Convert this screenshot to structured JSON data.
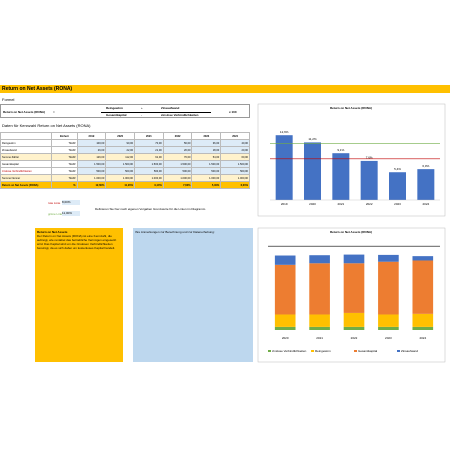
{
  "title": "Return on Net Assets (RONA)",
  "formula": {
    "heading": "Formel",
    "lhs": "Return on Net Assets (RONA)",
    "eq": "=",
    "num1": "Reingewinn",
    "plus": "+",
    "num2": "Zinsaufwand",
    "den1": "Gesamtkapital",
    "minus": "-",
    "den2": "zinslose Verbindlichkeiten",
    "factor": "x 100"
  },
  "table": {
    "heading": "Daten für Kennzahl Return on Net Assets (RONA)",
    "header": [
      "",
      "Einheit",
      "2019",
      "2020",
      "2021",
      "2022",
      "2023",
      "2024"
    ],
    "rows": [
      [
        "Reingewinn",
        "TEUR",
        "100,00",
        "90,00",
        "70,00",
        "56,00",
        "36,00",
        "40,00"
      ],
      [
        "Zinsaufwand",
        "TEUR",
        "26,00",
        "22,00",
        "21,00",
        "20,00",
        "18,00",
        "20,00"
      ],
      [
        "Summe Zähler",
        "TEUR",
        "126,00",
        "112,00",
        "91,00",
        "76,00",
        "54,00",
        "60,00"
      ],
      [
        "Gesamtkapital",
        "TEUR",
        "1.500,00",
        "1.500,00",
        "1.500,00",
        "1.500,00",
        "1.500,00",
        "1.500,00"
      ],
      [
        "zinslose Verbindlichkeiten",
        "TEUR",
        "500,00",
        "500,00",
        "500,00",
        "500,00",
        "500,00",
        "500,00"
      ],
      [
        "Summe Nenner",
        "TEUR",
        "1.000,00",
        "1.000,00",
        "1.000,00",
        "1.000,00",
        "1.000,00",
        "1.000,00"
      ],
      [
        "Return on Net Assets (RONA)",
        "%",
        "12,60%",
        "11,20%",
        "9,10%",
        "7,60%",
        "5,40%",
        "6,00%"
      ]
    ]
  },
  "limits": [
    {
      "label": "rote Linie",
      "value": "8,00%"
    },
    {
      "label": "grüne Linie",
      "value": "11,00%"
    }
  ],
  "limits_note": "Definieren Sie hier nach eigenen Vorgaben Grenzwerte für die Linien im Diagramm.",
  "info_box": {
    "heading": "Return on Net Assets",
    "text": "Der Return on Net Assets (RONA) ist eine Kennzahl, die aufzeigt, wie rentabel das betriebliche Vermögen eingesetzt wird. Das Kapital wird um die zinslosen Verbindlichkeiten bereinigt, da es sich dabei um kostenloses Kapital handelt."
  },
  "notes_box": {
    "text": "Ihre Anmerkungen zur Berechnung und zur Datenerhebung:"
  },
  "chart_data": [
    {
      "type": "bar",
      "title": "Return on Net Assets (RONA)",
      "categories": [
        "2019",
        "2020",
        "2021",
        "2022",
        "2023",
        "2024"
      ],
      "values": [
        12.6,
        11.2,
        9.1,
        7.6,
        5.4,
        6.0
      ],
      "value_labels": [
        "12,6%",
        "11,2%",
        "9,1%",
        "7,6%",
        "5,4%",
        "6,0%"
      ],
      "color": "#4472c4",
      "ylim": [
        0,
        14
      ],
      "reference_lines": [
        {
          "value": 11,
          "color": "#70ad47"
        },
        {
          "value": 8,
          "color": "#c00000"
        }
      ]
    },
    {
      "type": "stacked_bar",
      "title": "Return on Net Assets (RONA)",
      "categories": [
        "2020",
        "2021",
        "2022",
        "2023",
        "2024"
      ],
      "series": [
        {
          "name": "zinslose Verbindlichkeiten",
          "color": "#70ad47",
          "values": [
            10,
            10,
            10,
            10,
            10
          ]
        },
        {
          "name": "Reingewinn",
          "color": "#ffc000",
          "values": [
            40,
            40,
            45,
            40,
            42
          ]
        },
        {
          "name": "Gesamtkapital",
          "color": "#ed7d31",
          "values": [
            160,
            165,
            160,
            170,
            172
          ]
        },
        {
          "name": "Zinsaufwand",
          "color": "#4472c4",
          "values": [
            30,
            26,
            28,
            22,
            14
          ]
        }
      ],
      "ylim": [
        0,
        290
      ],
      "reference_lines": [
        {
          "value": 270,
          "color": "#000000"
        }
      ],
      "legend": "bottom"
    }
  ]
}
